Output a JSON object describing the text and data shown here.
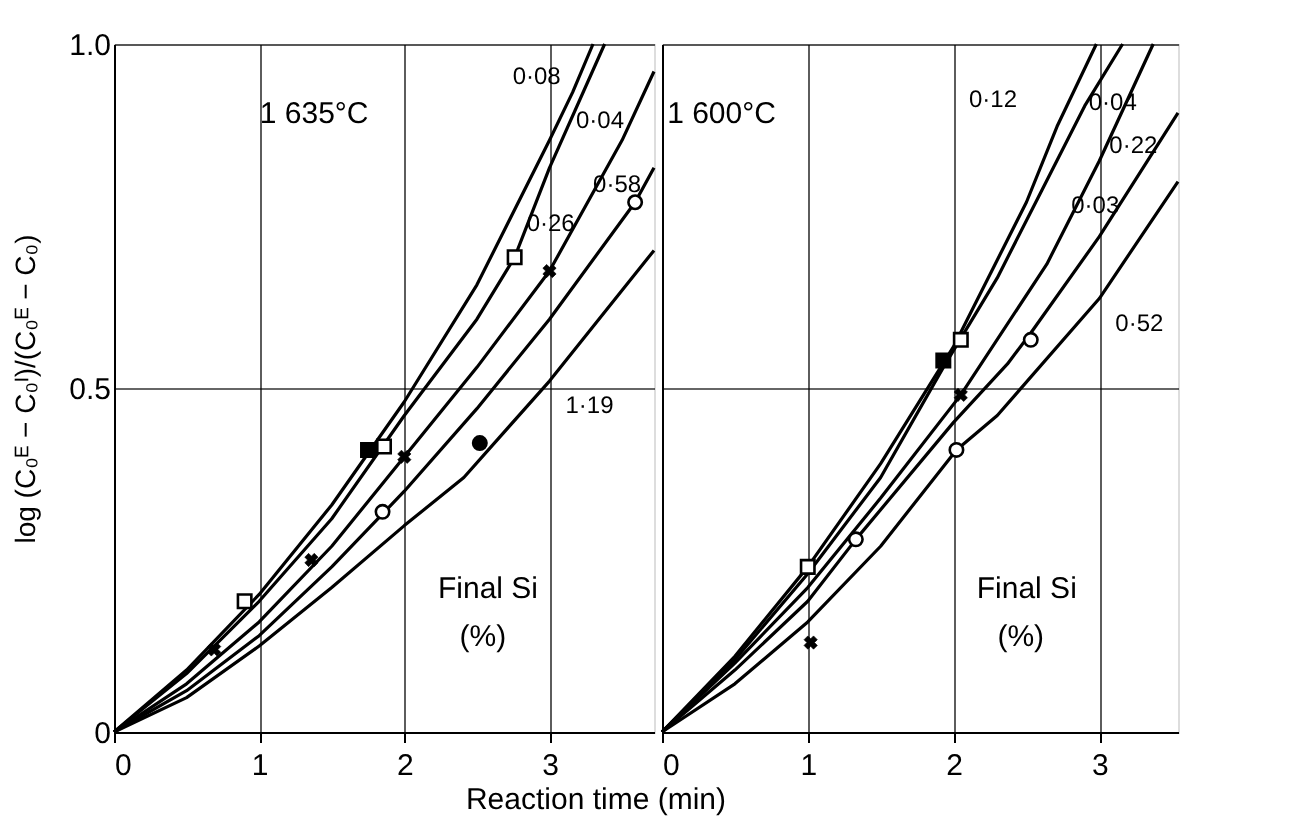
{
  "chart_data": [
    {
      "type": "line",
      "ylabel": "log (C₀ᴱ − C₀ᴵ)/(C₀ᴱ − C₀)",
      "xlabel": "Reaction time (min)",
      "annotations": [
        "1 635°C",
        "Final Si",
        "(%)"
      ],
      "xlim": [
        0,
        3.72
      ],
      "xticks": [
        0,
        1,
        2,
        3
      ],
      "ylim": [
        0,
        1
      ],
      "yticks": [
        0,
        0.5,
        {
          "value": 1,
          "label": "1.0"
        }
      ],
      "grid": true,
      "marker": "none",
      "line_style": "solid",
      "series": [
        {
          "name": "0·08",
          "color": "#000000",
          "type": "line",
          "x": [
            0,
            0.5,
            1,
            1.5,
            2,
            2.5,
            3,
            3.16,
            3.3
          ],
          "values": [
            0,
            0.09,
            0.2,
            0.33,
            0.48,
            0.65,
            0.86,
            0.93,
            1.0
          ]
        },
        {
          "name": "0·26",
          "color": "#000000",
          "type": "line",
          "x": [
            0,
            0.5,
            1,
            1.5,
            2,
            2.5,
            2.76,
            3,
            3.38
          ],
          "values": [
            0,
            0.085,
            0.19,
            0.31,
            0.46,
            0.6,
            0.69,
            0.82,
            1.0
          ]
        },
        {
          "name": "0·04",
          "color": "#000000",
          "type": "line",
          "x": [
            0,
            0.5,
            1,
            1.5,
            2,
            2.5,
            3,
            3.5,
            3.72
          ],
          "values": [
            0,
            0.07,
            0.16,
            0.27,
            0.4,
            0.53,
            0.67,
            0.86,
            0.96
          ]
        },
        {
          "name": "0·58",
          "color": "#000000",
          "type": "line",
          "x": [
            0,
            0.5,
            1,
            1.5,
            2,
            2.5,
            3,
            3.59,
            3.72
          ],
          "values": [
            0,
            0.06,
            0.14,
            0.24,
            0.35,
            0.47,
            0.6,
            0.77,
            0.82
          ]
        },
        {
          "name": "1·19",
          "color": "#000000",
          "type": "line",
          "x": [
            0,
            0.5,
            1,
            1.5,
            2,
            2.41,
            3,
            3.72
          ],
          "values": [
            0,
            0.05,
            0.125,
            0.21,
            0.3,
            0.37,
            0.51,
            0.7
          ]
        },
        {
          "type": "scatter",
          "marker": "square",
          "color": "#ffffff",
          "x": [
            0.9,
            1.86,
            2.76
          ],
          "values": [
            0.19,
            0.415,
            0.69
          ]
        },
        {
          "type": "scatter",
          "marker": "square",
          "color": "#000000",
          "x": [
            1.75
          ],
          "values": [
            0.41
          ]
        },
        {
          "type": "scatter",
          "marker": "cross",
          "color": "#000000",
          "x": [
            0.69,
            1.36,
            2.0,
            3.0
          ],
          "values": [
            0.12,
            0.25,
            0.4,
            0.67
          ]
        },
        {
          "type": "scatter",
          "marker": "circle",
          "color": "#ffffff",
          "x": [
            1.85,
            3.59
          ],
          "values": [
            0.32,
            0.77
          ]
        },
        {
          "type": "scatter",
          "marker": "circle",
          "color": "#000000",
          "x": [
            2.52
          ],
          "values": [
            0.42
          ]
        }
      ]
    },
    {
      "type": "line",
      "annotations": [
        "1 600°C",
        "Final Si",
        "(%)"
      ],
      "xlim": [
        0,
        3.54
      ],
      "xticks": [
        0,
        1,
        2,
        3
      ],
      "ylim": [
        0,
        1
      ],
      "yticks": [
        0,
        0.5,
        1
      ],
      "tick_labels": "x",
      "grid": true,
      "marker": "none",
      "line_style": "solid",
      "series": [
        {
          "name": "0·12",
          "color": "#000000",
          "type": "line",
          "x": [
            0,
            0.5,
            1,
            1.5,
            2,
            2.5,
            2.71,
            2.98
          ],
          "values": [
            0,
            0.11,
            0.24,
            0.39,
            0.56,
            0.77,
            0.88,
            1.0
          ]
        },
        {
          "name": "0·04",
          "color": "#000000",
          "type": "line",
          "x": [
            0,
            0.5,
            1,
            1.5,
            1.93,
            2.3,
            2.6,
            2.9,
            3.16
          ],
          "values": [
            0,
            0.105,
            0.23,
            0.37,
            0.53,
            0.66,
            0.785,
            0.91,
            1.0
          ]
        },
        {
          "name": "0·22",
          "color": "#000000",
          "type": "line",
          "x": [
            0,
            0.5,
            1,
            1.5,
            2.05,
            2.64,
            3.0,
            3.37
          ],
          "values": [
            0,
            0.1,
            0.21,
            0.34,
            0.49,
            0.68,
            0.83,
            1.0
          ]
        },
        {
          "name": "0·03",
          "color": "#000000",
          "type": "line",
          "x": [
            0,
            0.5,
            1,
            1.33,
            2,
            2.37,
            2.53,
            3,
            3.54
          ],
          "values": [
            0,
            0.09,
            0.19,
            0.28,
            0.45,
            0.535,
            0.58,
            0.72,
            0.9
          ]
        },
        {
          "name": "0·52",
          "color": "#000000",
          "type": "line",
          "x": [
            0,
            0.5,
            1,
            1.5,
            2.02,
            2.3,
            3,
            3.54
          ],
          "values": [
            0,
            0.07,
            0.16,
            0.27,
            0.41,
            0.46,
            0.63,
            0.8
          ]
        },
        {
          "type": "scatter",
          "marker": "square",
          "color": "#ffffff",
          "x": [
            1.0,
            2.05
          ],
          "values": [
            0.24,
            0.57
          ]
        },
        {
          "type": "scatter",
          "marker": "square",
          "color": "#000000",
          "x": [
            1.93
          ],
          "values": [
            0.54
          ]
        },
        {
          "type": "scatter",
          "marker": "cross",
          "color": "#000000",
          "x": [
            1.02,
            2.05
          ],
          "values": [
            0.13,
            0.49
          ]
        },
        {
          "type": "scatter",
          "marker": "circle",
          "color": "#ffffff",
          "x": [
            1.33,
            2.02,
            2.53
          ],
          "values": [
            0.28,
            0.41,
            0.57
          ]
        }
      ]
    }
  ]
}
